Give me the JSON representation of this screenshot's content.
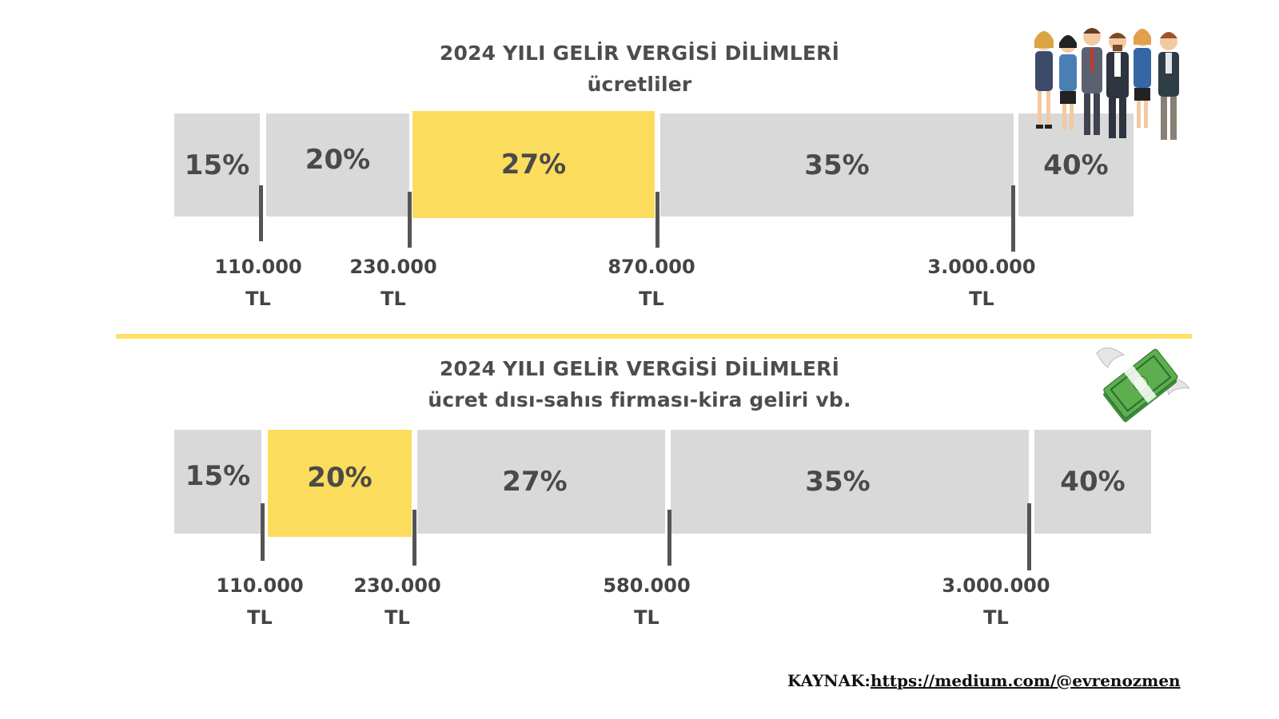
{
  "sections": [
    {
      "title": "2024 YILI GELİR VERGİSİ DİLİMLERİ",
      "subtitle": "ücretliler",
      "brackets": [
        {
          "rate": "15%",
          "highlight": false
        },
        {
          "rate": "20%",
          "highlight": false
        },
        {
          "rate": "27%",
          "highlight": true
        },
        {
          "rate": "35%",
          "highlight": false
        },
        {
          "rate": "40%",
          "highlight": false
        }
      ],
      "thresholds": [
        {
          "amount": "110.000",
          "unit": "TL"
        },
        {
          "amount": "230.000",
          "unit": "TL"
        },
        {
          "amount": "870.000",
          "unit": "TL"
        },
        {
          "amount": "3.000.000",
          "unit": "TL"
        }
      ]
    },
    {
      "title": "2024 YILI GELİR VERGİSİ DİLİMLERİ",
      "subtitle": "ücret dısı-sahıs firması-kira geliri vb.",
      "brackets": [
        {
          "rate": "15%",
          "highlight": false
        },
        {
          "rate": "20%",
          "highlight": true
        },
        {
          "rate": "27%",
          "highlight": false
        },
        {
          "rate": "35%",
          "highlight": false
        },
        {
          "rate": "40%",
          "highlight": false
        }
      ],
      "thresholds": [
        {
          "amount": "110.000",
          "unit": "TL"
        },
        {
          "amount": "230.000",
          "unit": "TL"
        },
        {
          "amount": "580.000",
          "unit": "TL"
        },
        {
          "amount": "3.000.000",
          "unit": "TL"
        }
      ]
    }
  ],
  "source": {
    "prefix": "KAYNAK:",
    "link": "https://medium.com/@evrenozmen"
  },
  "colors": {
    "gray": "#d9d9d9",
    "highlight": "#fcdc5c",
    "divider": "#ffe066",
    "text": "#4d4d4d"
  },
  "icons": {
    "people": "business-people-illustration",
    "money": "flying-money-illustration"
  }
}
